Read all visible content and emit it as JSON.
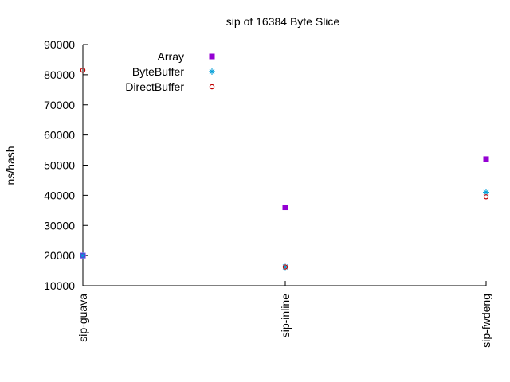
{
  "chart_data": {
    "type": "scatter",
    "title": "sip of 16384 Byte Slice",
    "ylabel": "ns/hash",
    "xlabel": "",
    "categories": [
      "sip-guava",
      "sip-inline",
      "sip-fwdeng"
    ],
    "ylim": [
      10000,
      90000
    ],
    "yticks": [
      10000,
      20000,
      30000,
      40000,
      50000,
      60000,
      70000,
      80000,
      90000
    ],
    "ytick_labels": [
      "10000",
      "20000",
      "30000",
      "40000",
      "50000",
      "60000",
      "70000",
      "80000",
      "90000"
    ],
    "legend_position": "top-left",
    "grid": false,
    "series": [
      {
        "name": "Array",
        "marker": "filled-square",
        "color": "#9400d3",
        "values": [
          20000,
          36000,
          52000
        ]
      },
      {
        "name": "ByteBuffer",
        "marker": "star",
        "color": "#009ed7",
        "values": [
          20000,
          16200,
          41000
        ]
      },
      {
        "name": "DirectBuffer",
        "marker": "open-circle",
        "color": "#c00000",
        "values": [
          81500,
          16200,
          39500
        ]
      }
    ]
  }
}
